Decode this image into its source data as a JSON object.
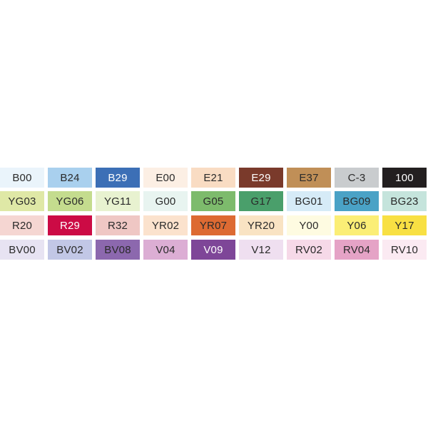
{
  "swatches": [
    [
      {
        "code": "B00",
        "color": "#eaf4fb"
      },
      {
        "code": "B24",
        "color": "#a9d0ee"
      },
      {
        "code": "B29",
        "color": "#3c6fb6",
        "light_text": true
      },
      {
        "code": "E00",
        "color": "#fcefe4"
      },
      {
        "code": "E21",
        "color": "#f9dcc3"
      },
      {
        "code": "E29",
        "color": "#7a3a2b",
        "light_text": true
      },
      {
        "code": "E37",
        "color": "#c08f57"
      },
      {
        "code": "C-3",
        "color": "#c9ccce"
      },
      {
        "code": "100",
        "color": "#231f20",
        "light_text": true
      }
    ],
    [
      {
        "code": "YG03",
        "color": "#dfe8a6"
      },
      {
        "code": "YG06",
        "color": "#c4dc8e"
      },
      {
        "code": "YG11",
        "color": "#e8f2d0"
      },
      {
        "code": "G00",
        "color": "#e8f4f0"
      },
      {
        "code": "G05",
        "color": "#7dbb6c"
      },
      {
        "code": "G17",
        "color": "#4a9f6b"
      },
      {
        "code": "BG01",
        "color": "#d6ebf7"
      },
      {
        "code": "BG09",
        "color": "#4aa2c6"
      },
      {
        "code": "BG23",
        "color": "#c5e4dc"
      }
    ],
    [
      {
        "code": "R20",
        "color": "#f5d6d2"
      },
      {
        "code": "R29",
        "color": "#cc0b45",
        "light_text": true
      },
      {
        "code": "R32",
        "color": "#efc7c4"
      },
      {
        "code": "YR02",
        "color": "#fbe2cd"
      },
      {
        "code": "YR07",
        "color": "#dd6a32"
      },
      {
        "code": "YR20",
        "color": "#f9e3c3"
      },
      {
        "code": "Y00",
        "color": "#fefbe1"
      },
      {
        "code": "Y06",
        "color": "#fbee76"
      },
      {
        "code": "Y17",
        "color": "#f8e043"
      }
    ],
    [
      {
        "code": "BV00",
        "color": "#e7e3f2"
      },
      {
        "code": "BV02",
        "color": "#c2c7e6"
      },
      {
        "code": "BV08",
        "color": "#8c68ae"
      },
      {
        "code": "V04",
        "color": "#dcaed4"
      },
      {
        "code": "V09",
        "color": "#7e4698",
        "light_text": true
      },
      {
        "code": "V12",
        "color": "#efdff0"
      },
      {
        "code": "RV02",
        "color": "#f6d9e8"
      },
      {
        "code": "RV04",
        "color": "#e5a3c6"
      },
      {
        "code": "RV10",
        "color": "#fbeaf2"
      }
    ]
  ]
}
